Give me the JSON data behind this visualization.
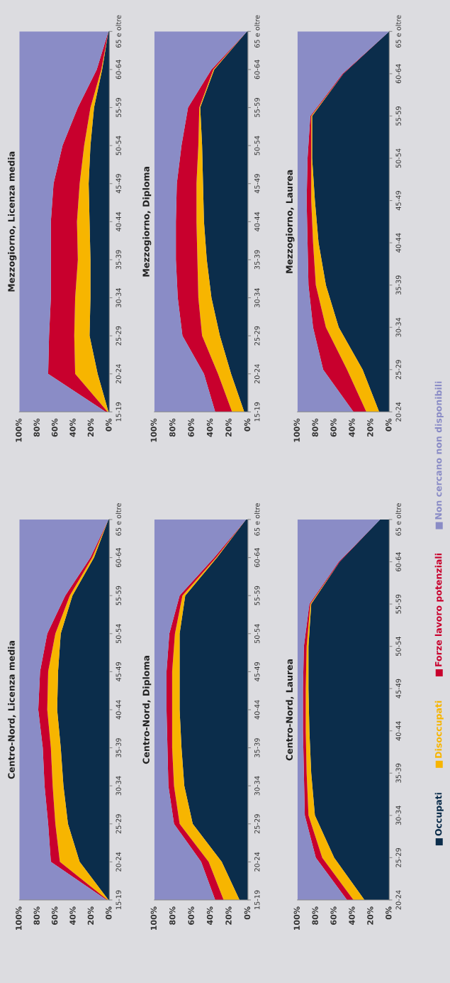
{
  "chart_data": [
    {
      "type": "area",
      "title": "Centro-Nord, Licenza media",
      "orientation": "horizontal",
      "stacked": true,
      "xlim": [
        100,
        0
      ],
      "xticks": [
        {
          "value": 100,
          "label": "100%"
        },
        {
          "value": 80,
          "label": "80%"
        },
        {
          "value": 60,
          "label": "60%"
        },
        {
          "value": 40,
          "label": "40%"
        },
        {
          "value": 20,
          "label": "20%"
        },
        {
          "value": 0,
          "label": "0%"
        }
      ],
      "categories": [
        "65 e oltre",
        "60-64",
        "55-59",
        "50-54",
        "45-49",
        "40-44",
        "35-39",
        "30-34",
        "25-29",
        "20-24",
        "15-19"
      ],
      "series": [
        {
          "color": "#0b2d4b",
          "values": [
            1,
            17,
            41,
            54,
            57,
            58,
            54,
            51,
            46,
            33,
            1
          ]
        },
        {
          "color": "#f7b500",
          "values": [
            0,
            2,
            3,
            6,
            11,
            11,
            11,
            12,
            14,
            22,
            1
          ]
        },
        {
          "color": "#c8002d",
          "values": [
            0,
            2,
            5,
            9,
            9,
            10,
            9,
            9,
            8,
            10,
            1
          ]
        },
        {
          "color": "#8a8cc6",
          "values": [
            99,
            79,
            51,
            31,
            23,
            21,
            26,
            28,
            32,
            35,
            97
          ]
        }
      ]
    },
    {
      "type": "area",
      "title": "Mezzogiorno, Licenza media",
      "orientation": "horizontal",
      "stacked": true,
      "xlim": [
        100,
        0
      ],
      "xticks": [
        {
          "value": 100,
          "label": "100%"
        },
        {
          "value": 80,
          "label": "80%"
        },
        {
          "value": 60,
          "label": "60%"
        },
        {
          "value": 40,
          "label": "40%"
        },
        {
          "value": 20,
          "label": "20%"
        },
        {
          "value": 0,
          "label": "0%"
        }
      ],
      "categories": [
        "65 e oltre",
        "60-64",
        "55-59",
        "50-54",
        "45-49",
        "40-44",
        "35-39",
        "30-34",
        "25-29",
        "20-24",
        "15-19"
      ],
      "series": [
        {
          "color": "#0b2d4b",
          "values": [
            1,
            8,
            17,
            21,
            23,
            22,
            21,
            21,
            22,
            13,
            1
          ]
        },
        {
          "color": "#f7b500",
          "values": [
            0,
            1,
            4,
            7,
            10,
            14,
            14,
            17,
            17,
            25,
            1
          ]
        },
        {
          "color": "#c8002d",
          "values": [
            0,
            5,
            14,
            24,
            29,
            29,
            30,
            27,
            28,
            30,
            2
          ]
        },
        {
          "color": "#8a8cc6",
          "values": [
            99,
            86,
            65,
            48,
            38,
            35,
            35,
            35,
            33,
            32,
            96
          ]
        }
      ]
    },
    {
      "type": "area",
      "title": "Centro-Nord, Diploma",
      "orientation": "horizontal",
      "stacked": true,
      "xlim": [
        100,
        0
      ],
      "xticks": [
        {
          "value": 100,
          "label": "100%"
        },
        {
          "value": 80,
          "label": "80%"
        },
        {
          "value": 60,
          "label": "60%"
        },
        {
          "value": 40,
          "label": "40%"
        },
        {
          "value": 20,
          "label": "20%"
        },
        {
          "value": 0,
          "label": "0%"
        }
      ],
      "categories": [
        "65 e oltre",
        "60-64",
        "55-59",
        "50-54",
        "45-49",
        "40-44",
        "35-39",
        "30-34",
        "25-29",
        "20-24",
        "15-19"
      ],
      "series": [
        {
          "color": "#0b2d4b",
          "values": [
            2,
            33,
            67,
            73,
            73,
            73,
            71,
            68,
            59,
            28,
            9
          ]
        },
        {
          "color": "#f7b500",
          "values": [
            0,
            1,
            3,
            5,
            8,
            8,
            10,
            11,
            14,
            14,
            17
          ]
        },
        {
          "color": "#c8002d",
          "values": [
            0,
            2,
            3,
            6,
            6,
            6,
            5,
            6,
            6,
            8,
            9
          ]
        },
        {
          "color": "#8a8cc6",
          "values": [
            98,
            64,
            27,
            16,
            13,
            13,
            14,
            15,
            21,
            50,
            65
          ]
        }
      ]
    },
    {
      "type": "area",
      "title": "Mezzogiorno, Diploma",
      "orientation": "horizontal",
      "stacked": true,
      "xlim": [
        100,
        0
      ],
      "xticks": [
        {
          "value": 100,
          "label": "100%"
        },
        {
          "value": 80,
          "label": "80%"
        },
        {
          "value": 60,
          "label": "60%"
        },
        {
          "value": 40,
          "label": "40%"
        },
        {
          "value": 20,
          "label": "20%"
        },
        {
          "value": 0,
          "label": "0%"
        }
      ],
      "categories": [
        "65 e oltre",
        "60-64",
        "55-59",
        "50-54",
        "45-49",
        "40-44",
        "35-39",
        "30-34",
        "25-29",
        "20-24",
        "15-19"
      ],
      "series": [
        {
          "color": "#0b2d4b",
          "values": [
            1,
            36,
            51,
            49,
            48,
            47,
            44,
            39,
            30,
            18,
            4
          ]
        },
        {
          "color": "#f7b500",
          "values": [
            0,
            1,
            1,
            4,
            7,
            8,
            10,
            14,
            19,
            14,
            13
          ]
        },
        {
          "color": "#c8002d",
          "values": [
            0,
            2,
            12,
            18,
            21,
            22,
            23,
            22,
            21,
            15,
            18
          ]
        },
        {
          "color": "#8a8cc6",
          "values": [
            99,
            61,
            36,
            29,
            24,
            23,
            23,
            25,
            30,
            53,
            65
          ]
        }
      ]
    },
    {
      "type": "area",
      "title": "Centro-Nord, Laurea",
      "orientation": "horizontal",
      "stacked": true,
      "xlim": [
        100,
        0
      ],
      "xticks": [
        {
          "value": 100,
          "label": "100%"
        },
        {
          "value": 80,
          "label": "80%"
        },
        {
          "value": 60,
          "label": "60%"
        },
        {
          "value": 40,
          "label": "40%"
        },
        {
          "value": 20,
          "label": "20%"
        },
        {
          "value": 0,
          "label": "0%"
        }
      ],
      "categories": [
        "65 e oltre",
        "60-64",
        "55-59",
        "50-54",
        "45-49",
        "40-44",
        "35-39",
        "30-34",
        "25-29",
        "20-24"
      ],
      "series": [
        {
          "color": "#0b2d4b",
          "values": [
            10,
            54,
            85,
            88,
            88,
            87,
            85,
            81,
            60,
            27
          ]
        },
        {
          "color": "#f7b500",
          "values": [
            0,
            0,
            1,
            2,
            3,
            4,
            5,
            7,
            13,
            12
          ]
        },
        {
          "color": "#c8002d",
          "values": [
            0,
            1,
            1,
            3,
            3,
            3,
            3,
            4,
            7,
            7
          ]
        },
        {
          "color": "#8a8cc6",
          "values": [
            90,
            45,
            13,
            7,
            6,
            6,
            7,
            8,
            20,
            54
          ]
        }
      ]
    },
    {
      "type": "area",
      "title": "Mezzogiorno, Laurea",
      "orientation": "horizontal",
      "stacked": true,
      "xlim": [
        100,
        0
      ],
      "legend": "right",
      "xticks": [
        {
          "value": 100,
          "label": "100%"
        },
        {
          "value": 80,
          "label": "80%"
        },
        {
          "value": 60,
          "label": "60%"
        },
        {
          "value": 40,
          "label": "40%"
        },
        {
          "value": 20,
          "label": "20%"
        },
        {
          "value": 0,
          "label": "0%"
        }
      ],
      "categories": [
        "65 e oltre",
        "60-64",
        "55-59",
        "50-54",
        "45-49",
        "40-44",
        "35-39",
        "30-34",
        "25-29",
        "20-24"
      ],
      "series": [
        {
          "name": "Occupati",
          "color": "#0b2d4b",
          "values": [
            0,
            50,
            84,
            84,
            81,
            77,
            69,
            55,
            29,
            11
          ]
        },
        {
          "name": "Disoccupati",
          "color": "#f7b500",
          "values": [
            0,
            0,
            1,
            1,
            4,
            6,
            11,
            14,
            17,
            14
          ]
        },
        {
          "name": "Forze lavoro potenziali",
          "color": "#c8002d",
          "values": [
            0,
            1,
            1,
            4,
            5,
            6,
            8,
            14,
            26,
            14
          ]
        },
        {
          "name": "Non cercano non disponibili",
          "color": "#8a8cc6",
          "values": [
            100,
            49,
            14,
            11,
            10,
            11,
            12,
            17,
            28,
            61
          ]
        }
      ]
    }
  ]
}
